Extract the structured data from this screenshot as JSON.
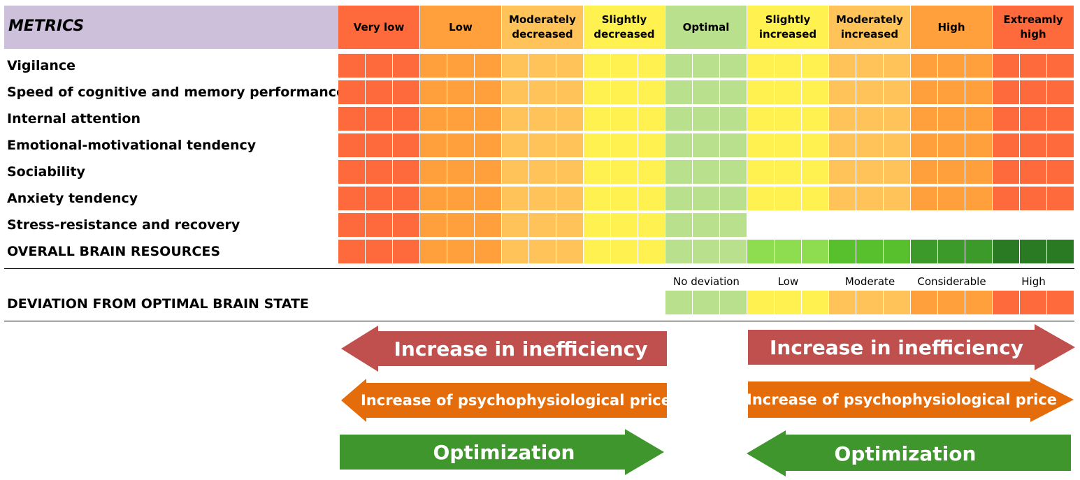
{
  "metrics_header": "METRICS",
  "levels": [
    {
      "label": "Very low",
      "color": "#ff6a3c"
    },
    {
      "label": "Low",
      "color": "#ffa03c"
    },
    {
      "label": "Moderately decreased",
      "color": "#ffc35a"
    },
    {
      "label": "Slightly decreased",
      "color": "#fff250"
    },
    {
      "label": "Optimal",
      "color": "#b9e08c"
    },
    {
      "label": "Slightly increased",
      "color": "#fff250"
    },
    {
      "label": "Moderately increased",
      "color": "#ffc35a"
    },
    {
      "label": "High",
      "color": "#ffa03c"
    },
    {
      "label": "Extreamly high",
      "color": "#ff6a3c"
    }
  ],
  "metrics": [
    {
      "label": "Vigilance",
      "levels": 9,
      "palette": "standard"
    },
    {
      "label": "Speed of cognitive and memory performance",
      "levels": 9,
      "palette": "standard"
    },
    {
      "label": "Internal attention",
      "levels": 9,
      "palette": "standard"
    },
    {
      "label": "Emotional-motivational tendency",
      "levels": 9,
      "palette": "standard"
    },
    {
      "label": "Sociability",
      "levels": 9,
      "palette": "standard"
    },
    {
      "label": "Anxiety tendency",
      "levels": 9,
      "palette": "standard"
    },
    {
      "label": "Stress-resistance and recovery",
      "levels": 5,
      "palette": "standard"
    },
    {
      "label": "OVERALL BRAIN RESOURCES",
      "levels": 9,
      "palette": "resources"
    }
  ],
  "resources_colors": [
    "#ff6a3c",
    "#ffa03c",
    "#ffc35a",
    "#fff250",
    "#b9e08c",
    "#8edc50",
    "#58c02c",
    "#3c9a2a",
    "#2a7a24"
  ],
  "deviation": {
    "title": "DEVIATION FROM OPTIMAL BRAIN STATE",
    "labels": [
      "No deviation",
      "Low",
      "Moderate",
      "Considerable",
      "High"
    ],
    "colors": [
      "#b9e08c",
      "#fff250",
      "#ffc35a",
      "#ffa03c",
      "#ff6a3c"
    ]
  },
  "arrows": {
    "left_inefficiency": "Increase in inefficiency",
    "left_price": "Increase of psychophysiological price",
    "left_optimization": "Optimization",
    "right_inefficiency": "Increase in inefficiency",
    "right_price": "Increase of psychophysiological price",
    "right_optimization": "Optimization",
    "colors": {
      "inefficiency": "#c0504d",
      "price": "#e46c0a",
      "optimization": "#3f962c"
    }
  }
}
